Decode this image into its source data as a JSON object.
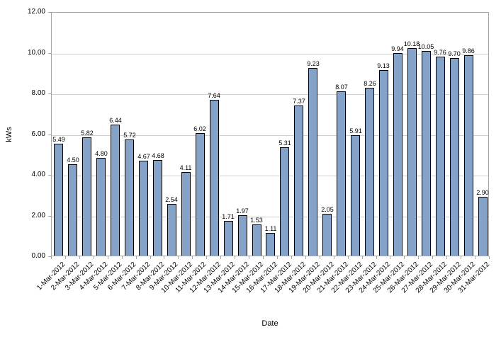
{
  "chart_data": {
    "type": "bar",
    "title": "",
    "xlabel": "Date",
    "ylabel": "kWs",
    "categories": [
      "1-Mar-2012",
      "2-Mar-2012",
      "3-Mar-2012",
      "4-Mar-2012",
      "5-Mar-2012",
      "6-Mar-2012",
      "7-Mar-2012",
      "8-Mar-2012",
      "9-Mar-2012",
      "10-Mar-2012",
      "11-Mar-2012",
      "12-Mar-2012",
      "13-Mar-2012",
      "14-Mar-2012",
      "15-Mar-2012",
      "16-Mar-2012",
      "17-Mar-2012",
      "18-Mar-2012",
      "19-Mar-2012",
      "20-Mar-2012",
      "21-Mar-2012",
      "22-Mar-2012",
      "23-Mar-2012",
      "24-Mar-2012",
      "25-Mar-2012",
      "26-Mar-2012",
      "27-Mar-2012",
      "28-Mar-2012",
      "29-Mar-2012",
      "30-Mar-2012",
      "31-Mar-2012"
    ],
    "values": [
      5.49,
      4.5,
      5.82,
      4.8,
      6.44,
      5.72,
      4.67,
      4.68,
      2.54,
      4.11,
      6.02,
      7.64,
      1.71,
      1.97,
      1.53,
      1.11,
      5.31,
      7.37,
      9.23,
      2.05,
      8.07,
      5.91,
      8.26,
      9.13,
      9.94,
      10.18,
      10.05,
      9.76,
      9.7,
      9.86,
      2.9
    ],
    "value_labels": [
      "5.49",
      "4.50",
      "5.82",
      "4.80",
      "6.44",
      "5.72",
      "4.67",
      "4.68",
      "2.54",
      "4.11",
      "6.02",
      "7.64",
      "1.71",
      "1.97",
      "1.53",
      "1.11",
      "5.31",
      "7.37",
      "9.23",
      "2.05",
      "8.07",
      "5.91",
      "8.26",
      "9.13",
      "9.94",
      "10.18",
      "10.05",
      "9.76",
      "9.70",
      "9.86",
      "2.90"
    ],
    "ylim": [
      0,
      12
    ],
    "ytick_step": 2,
    "ytick_labels": [
      "0.00",
      "2.00",
      "4.00",
      "6.00",
      "8.00",
      "10.00",
      "12.00"
    ],
    "grid": true,
    "legend": "none",
    "colors": {
      "bar_fill": "#85A3C8",
      "bar_border": "#000000",
      "gridline": "#CFCFCF",
      "axis": "#A6A6A6",
      "text": "#000000",
      "background": "#FFFFFF"
    }
  }
}
